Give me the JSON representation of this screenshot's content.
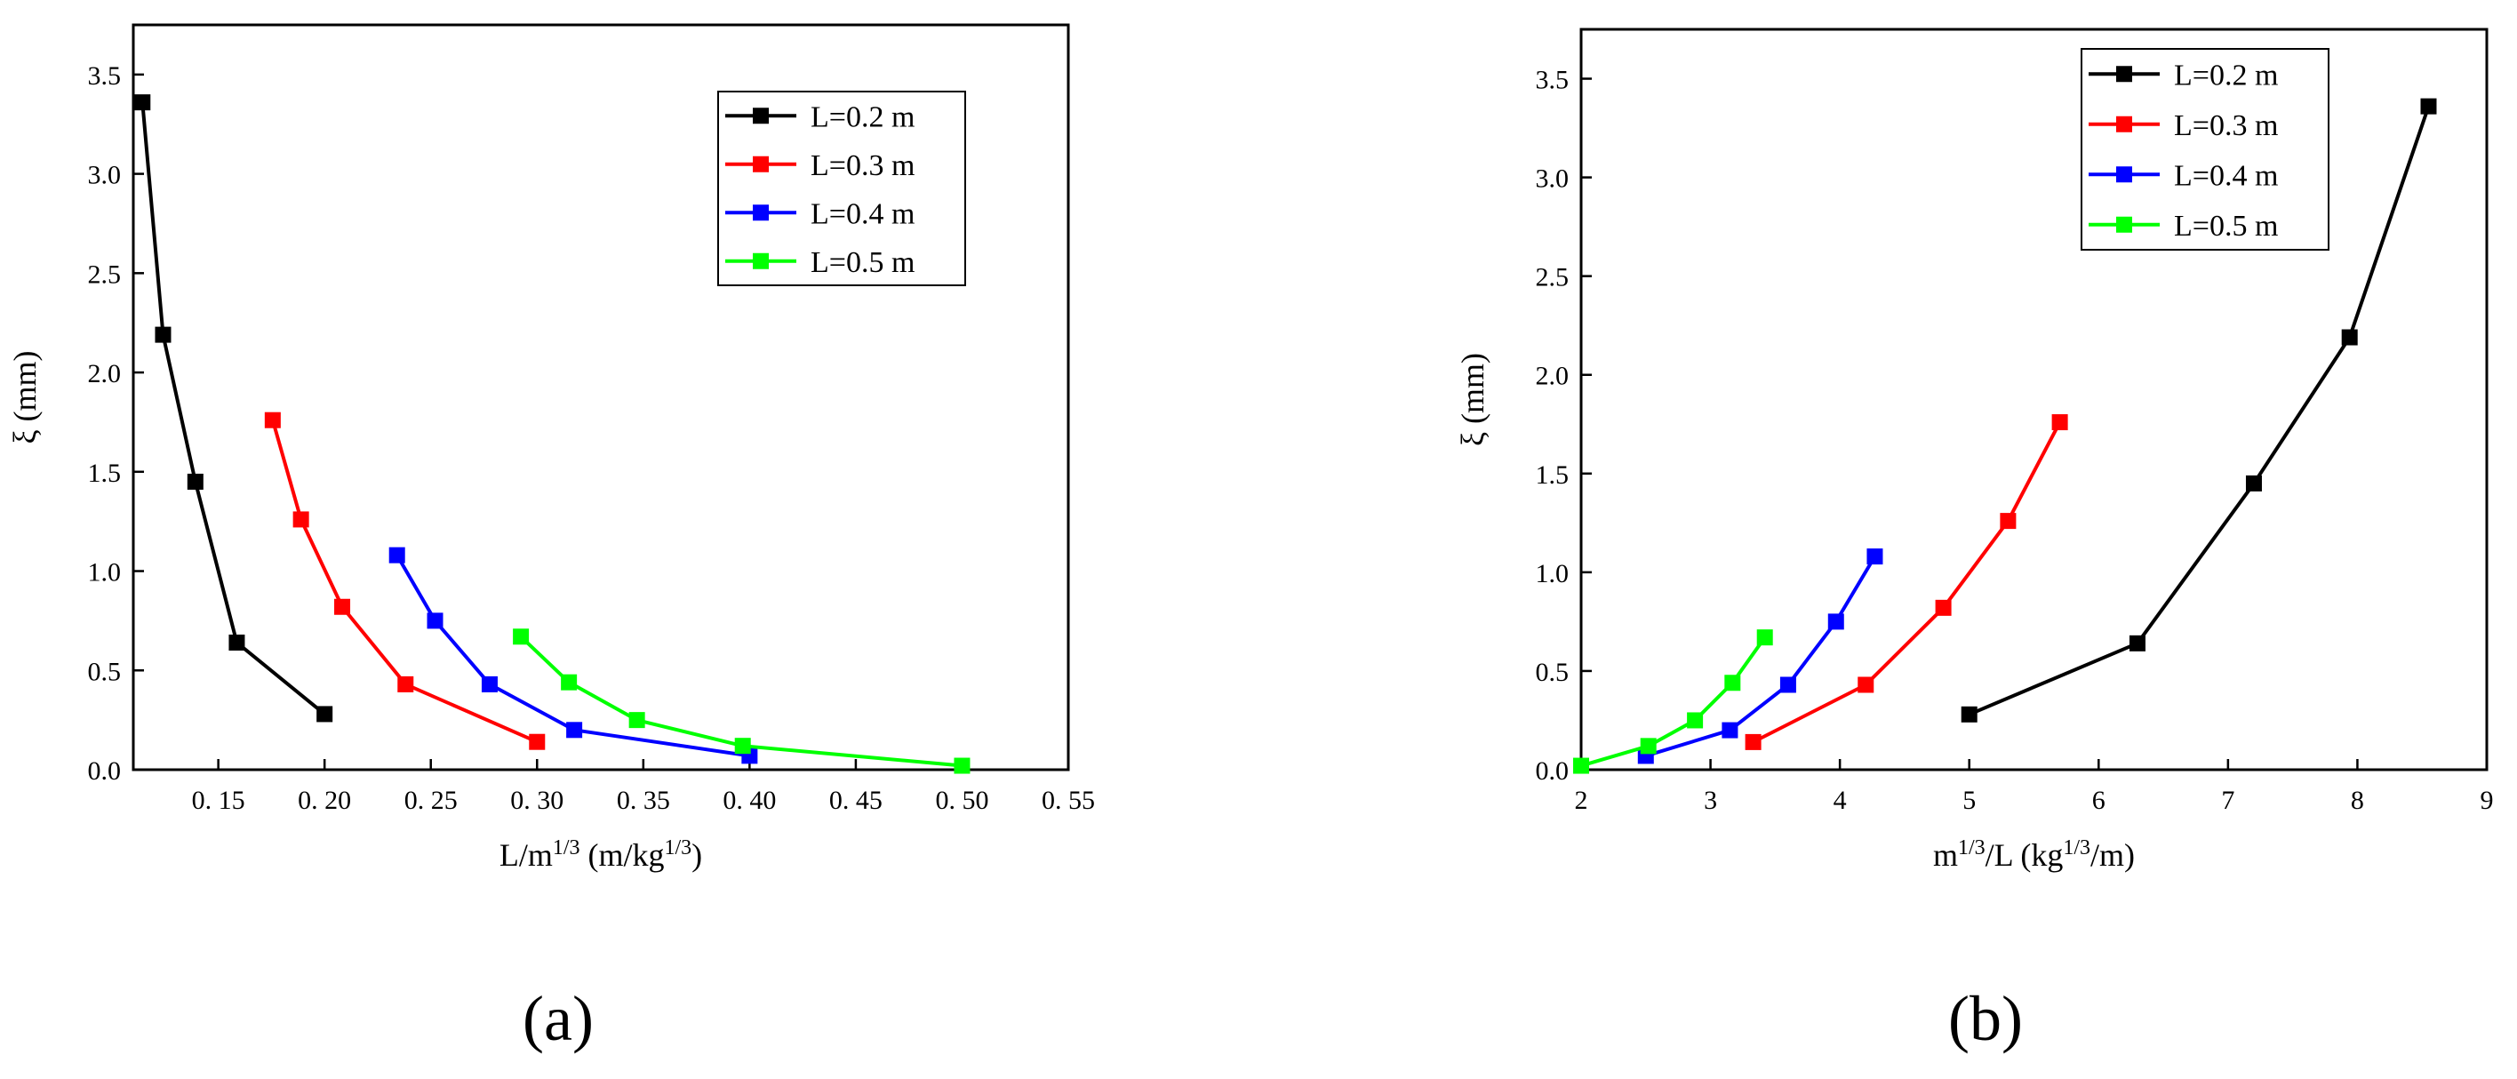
{
  "chart_data": [
    {
      "type": "line",
      "panel_label": "(a)",
      "xlabel": {
        "base": "L/m",
        "base_sup": "1/3",
        "unit": " (m/kg",
        "unit_sup": "1/3",
        "close": ")"
      },
      "ylabel": "ξ (mm)",
      "xlim": [
        0.11,
        0.55
      ],
      "ylim": [
        0,
        3.75
      ],
      "xticks": [
        0.15,
        0.2,
        0.25,
        0.3,
        0.35,
        0.4,
        0.45,
        0.5,
        0.55
      ],
      "xtick_labels": [
        "0. 15",
        "0. 20",
        "0. 25",
        "0. 30",
        "0. 35",
        "0. 40",
        "0. 45",
        "0. 50",
        "0. 55"
      ],
      "yticks": [
        0,
        0.5,
        1.0,
        1.5,
        2.0,
        2.5,
        3.0,
        3.5
      ],
      "ytick_labels": [
        "0.0",
        "0.5",
        "1.0",
        "1.5",
        "2.0",
        "2.5",
        "3.0",
        "3.5"
      ],
      "legend": "top-right",
      "grid": false,
      "series": [
        {
          "name": "L=0.2 m",
          "color": "#000000",
          "x": [
            0.1143,
            0.124,
            0.1392,
            0.1587,
            0.2
          ],
          "y": [
            3.36,
            2.19,
            1.45,
            0.64,
            0.28
          ]
        },
        {
          "name": "L=0.3 m",
          "color": "#ff0000",
          "x": [
            0.1756,
            0.1889,
            0.2083,
            0.2381,
            0.3
          ],
          "y": [
            1.76,
            1.26,
            0.82,
            0.43,
            0.14
          ]
        },
        {
          "name": "L=0.4 m",
          "color": "#0000ff",
          "x": [
            0.2341,
            0.252,
            0.2777,
            0.3175,
            0.4
          ],
          "y": [
            1.08,
            0.75,
            0.43,
            0.2,
            0.07
          ]
        },
        {
          "name": "L=0.5 m",
          "color": "#00ff00",
          "x": [
            0.2924,
            0.315,
            0.347,
            0.3968,
            0.5
          ],
          "y": [
            0.67,
            0.44,
            0.25,
            0.12,
            0.02
          ]
        }
      ]
    },
    {
      "type": "line",
      "panel_label": "(b)",
      "xlabel": {
        "base": "m",
        "base_sup": "1/3",
        "mid": "/L (kg",
        "unit_sup": "1/3",
        "close": "/m)"
      },
      "ylabel": "ξ (mm)",
      "xlim": [
        2,
        9
      ],
      "ylim": [
        0,
        3.75
      ],
      "xticks": [
        2,
        3,
        4,
        5,
        6,
        7,
        8,
        9
      ],
      "xtick_labels": [
        "2",
        "3",
        "4",
        "5",
        "6",
        "7",
        "8",
        "9"
      ],
      "yticks": [
        0,
        0.5,
        1.0,
        1.5,
        2.0,
        2.5,
        3.0,
        3.5
      ],
      "ytick_labels": [
        "0.0",
        "0.5",
        "1.0",
        "1.5",
        "2.0",
        "2.5",
        "3.0",
        "3.5"
      ],
      "legend": "top-left",
      "grid": false,
      "series": [
        {
          "name": "L=0.2 m",
          "color": "#000000",
          "x": [
            5.0,
            6.3,
            7.2,
            7.94,
            8.55
          ],
          "y": [
            0.28,
            0.64,
            1.45,
            2.19,
            3.36
          ]
        },
        {
          "name": "L=0.3 m",
          "color": "#ff0000",
          "x": [
            3.33,
            4.2,
            4.8,
            5.3,
            5.7
          ],
          "y": [
            0.14,
            0.43,
            0.82,
            1.26,
            1.76
          ]
        },
        {
          "name": "L=0.4 m",
          "color": "#0000ff",
          "x": [
            2.5,
            3.15,
            3.6,
            3.97,
            4.27
          ],
          "y": [
            0.07,
            0.2,
            0.43,
            0.75,
            1.08
          ]
        },
        {
          "name": "L=0.5 m",
          "color": "#00ff00",
          "x": [
            2.0,
            2.52,
            2.88,
            3.17,
            3.42
          ],
          "y": [
            0.02,
            0.12,
            0.25,
            0.44,
            0.67
          ]
        }
      ]
    }
  ]
}
